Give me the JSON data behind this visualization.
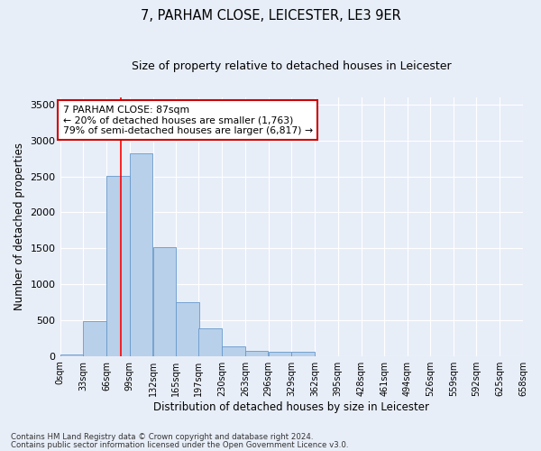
{
  "title": "7, PARHAM CLOSE, LEICESTER, LE3 9ER",
  "subtitle": "Size of property relative to detached houses in Leicester",
  "xlabel": "Distribution of detached houses by size in Leicester",
  "ylabel": "Number of detached properties",
  "bar_color": "#b8d0ea",
  "bar_edge_color": "#6699cc",
  "background_color": "#e8eef8",
  "grid_color": "#ffffff",
  "annotation_text": "7 PARHAM CLOSE: 87sqm\n← 20% of detached houses are smaller (1,763)\n79% of semi-detached houses are larger (6,817) →",
  "annotation_box_color": "#ffffff",
  "annotation_box_edge": "#cc0000",
  "redline_x": 87,
  "bins": [
    0,
    33,
    66,
    99,
    132,
    165,
    197,
    230,
    263,
    296,
    329,
    362,
    395,
    428,
    461,
    494,
    526,
    559,
    592,
    625,
    658
  ],
  "bin_labels": [
    "0sqm",
    "33sqm",
    "66sqm",
    "99sqm",
    "132sqm",
    "165sqm",
    "197sqm",
    "230sqm",
    "263sqm",
    "296sqm",
    "329sqm",
    "362sqm",
    "395sqm",
    "428sqm",
    "461sqm",
    "494sqm",
    "526sqm",
    "559sqm",
    "592sqm",
    "625sqm",
    "658sqm"
  ],
  "counts": [
    20,
    480,
    2510,
    2820,
    1520,
    750,
    390,
    140,
    75,
    60,
    60,
    0,
    0,
    0,
    0,
    0,
    0,
    0,
    0,
    0
  ],
  "ylim": [
    0,
    3600
  ],
  "yticks": [
    0,
    500,
    1000,
    1500,
    2000,
    2500,
    3000,
    3500
  ],
  "footer1": "Contains HM Land Registry data © Crown copyright and database right 2024.",
  "footer2": "Contains public sector information licensed under the Open Government Licence v3.0."
}
